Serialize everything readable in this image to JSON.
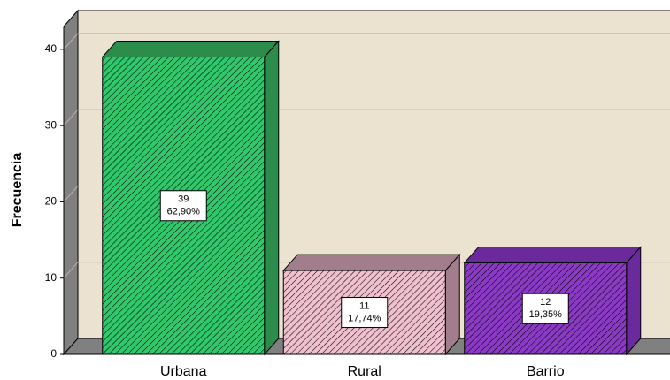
{
  "chart_data": {
    "type": "bar3d",
    "y_label": "Frecuencia",
    "categories": [
      "Urbana",
      "Rural",
      "Barrio"
    ],
    "values": [
      39,
      11,
      12
    ],
    "percent_values": [
      62.9,
      17.74,
      19.35
    ],
    "percent_labels": [
      "62,90%",
      "17,74%",
      "19,35%"
    ],
    "colors": [
      "#2fc86a",
      "#f0c0cf",
      "#8b3ac6"
    ],
    "top_colors": [
      "#2b8c4c",
      "#a27d8c",
      "#6b2a9c"
    ],
    "ylim": [
      0,
      43
    ],
    "yticks": [
      0,
      10,
      20,
      30,
      40
    ],
    "grid": true
  }
}
